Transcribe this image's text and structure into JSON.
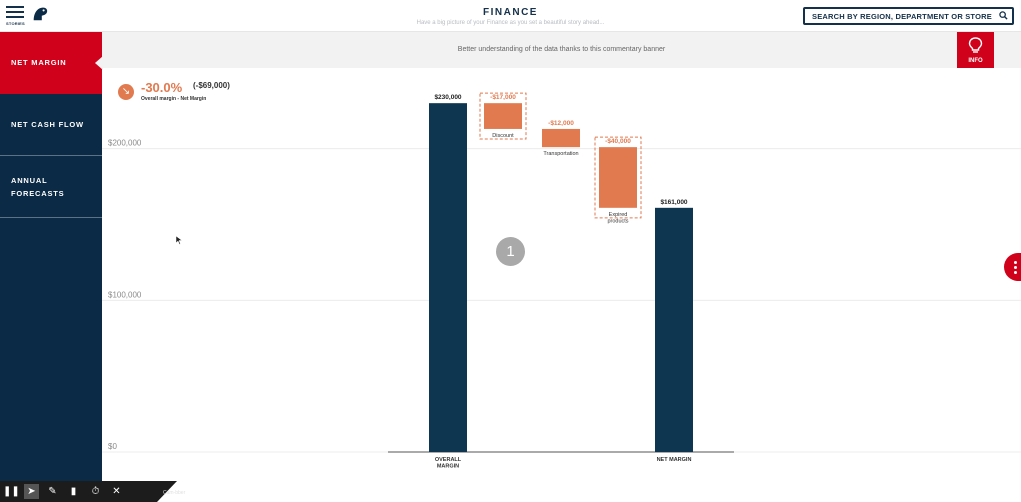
{
  "header": {
    "menu_label": "STORIES",
    "title": "FINANCE",
    "subtitle": "Have a big picture of your Finance as you set a beautiful story ahead...",
    "search_label": "SEARCH BY REGION, DEPARTMENT OR STORE"
  },
  "sidebar": {
    "items": [
      {
        "label": "NET MARGIN",
        "active": true
      },
      {
        "label": "NET CASH FLOW",
        "active": false
      },
      {
        "label": "ANNUAL\nFORECASTS",
        "active": false
      }
    ]
  },
  "banner": {
    "text": "Better understanding of the data thanks to this commentary banner",
    "info_label": "INFO"
  },
  "kpi": {
    "percent": "-30.0%",
    "amount": "(-$69,000)",
    "caption": "Overall margin - Net Margin"
  },
  "marker_label": "1",
  "toolbar_ghost": "Cam-bber",
  "colors": {
    "navy": "#0b2a45",
    "bar": "#0e3650",
    "accent": "#e17a4f",
    "red": "#d0021b"
  },
  "icons": [
    "stories-menu-icon",
    "logo-icon",
    "search-icon",
    "lightbulb-icon",
    "trend-down-icon",
    "more-vertical-icon",
    "pause-icon",
    "pointer-icon",
    "pen-icon",
    "eraser-icon",
    "timer-icon",
    "close-icon"
  ],
  "chart_data": {
    "type": "waterfall",
    "ylim": [
      0,
      240000
    ],
    "yticks": [
      {
        "value": 0,
        "label": "$0"
      },
      {
        "value": 100000,
        "label": "$100,000"
      },
      {
        "value": 200000,
        "label": "$200,000"
      }
    ],
    "steps": [
      {
        "category": "OVERALL\nMARGIN",
        "kind": "total",
        "value": 230000,
        "label": "$230,000",
        "highlight": false
      },
      {
        "category": "Discount",
        "kind": "delta",
        "value": -17000,
        "label": "-$17,000",
        "highlight": true
      },
      {
        "category": "Transportation",
        "kind": "delta",
        "value": -12000,
        "label": "-$12,000",
        "highlight": false
      },
      {
        "category": "Expired\nproducts",
        "kind": "delta",
        "value": -40000,
        "label": "-$40,000",
        "highlight": true
      },
      {
        "category": "NET MARGIN",
        "kind": "total",
        "value": 161000,
        "label": "$161,000",
        "highlight": false
      }
    ]
  }
}
